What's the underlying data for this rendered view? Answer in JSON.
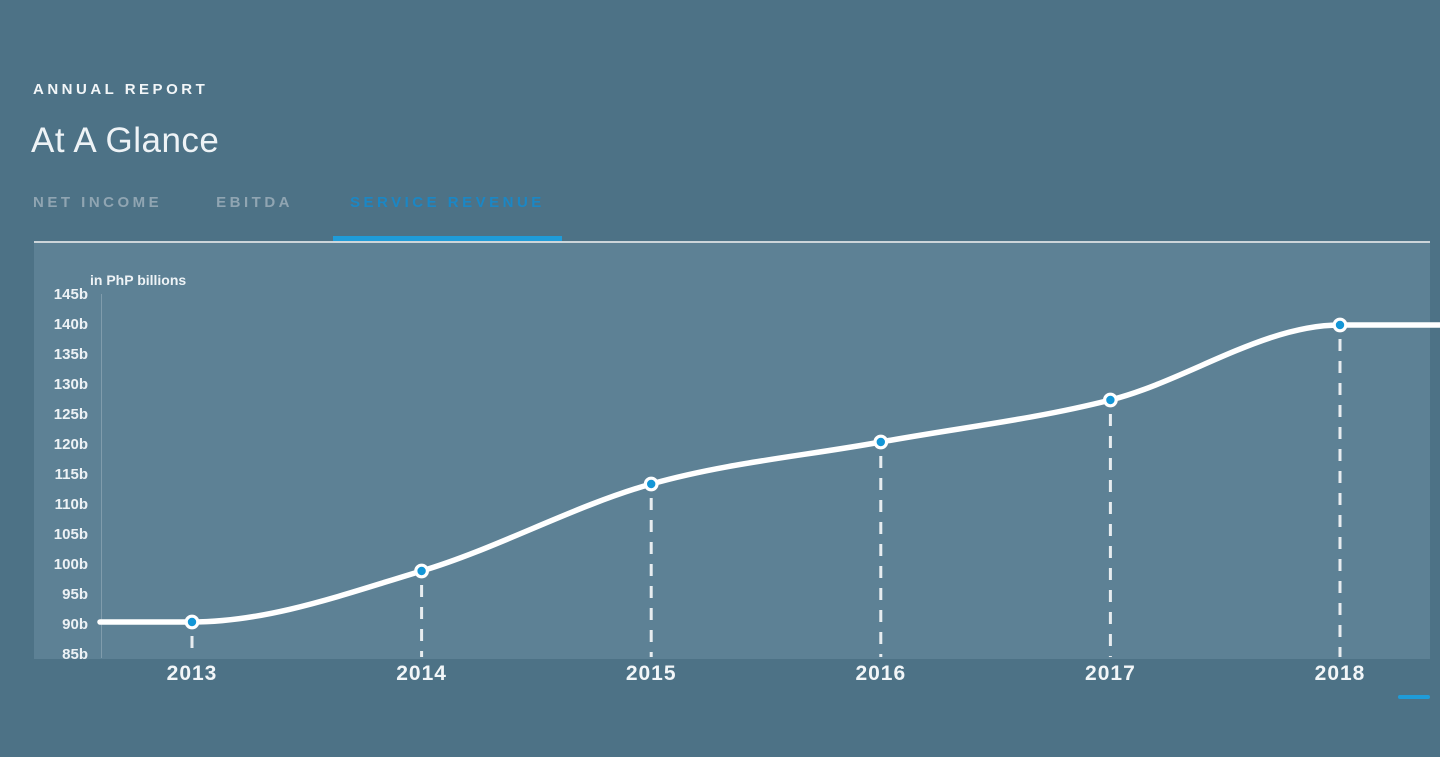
{
  "header": {
    "eyebrow": "ANNUAL REPORT",
    "title": "At A Glance"
  },
  "tabs": [
    {
      "label": "NET INCOME",
      "active": false
    },
    {
      "label": "EBITDA",
      "active": false
    },
    {
      "label": "SERVICE REVENUE",
      "active": true
    }
  ],
  "chart_data": {
    "type": "line",
    "title": "",
    "unit_label": "in PhP billions",
    "categories": [
      "2013",
      "2014",
      "2015",
      "2016",
      "2017",
      "2018"
    ],
    "series": [
      {
        "name": "SERVICE REVENUE",
        "values": [
          90.5,
          99,
          113.5,
          120.5,
          127.5,
          140
        ]
      }
    ],
    "y_ticks": [
      "145b",
      "140b",
      "135b",
      "130b",
      "125b",
      "120b",
      "115b",
      "110b",
      "105b",
      "100b",
      "95b",
      "90b",
      "85b"
    ],
    "ylim": [
      85,
      145
    ],
    "y_step": 5,
    "grid": false,
    "legend": "none",
    "marker": "circle",
    "line_extends_beyond_ends": true,
    "drop_lines": "dashed"
  },
  "colors": {
    "page_bg": "#4d7286",
    "plot_bg": "#5d8195",
    "accent_blue": "#1f9cd9",
    "tab_active_text": "#1b87c5",
    "tab_inactive_text": "#90a5b2",
    "point_fill": "#1496d6",
    "line": "#ffffff",
    "divider": "#ccd5da",
    "text": "#f2f6f8"
  }
}
